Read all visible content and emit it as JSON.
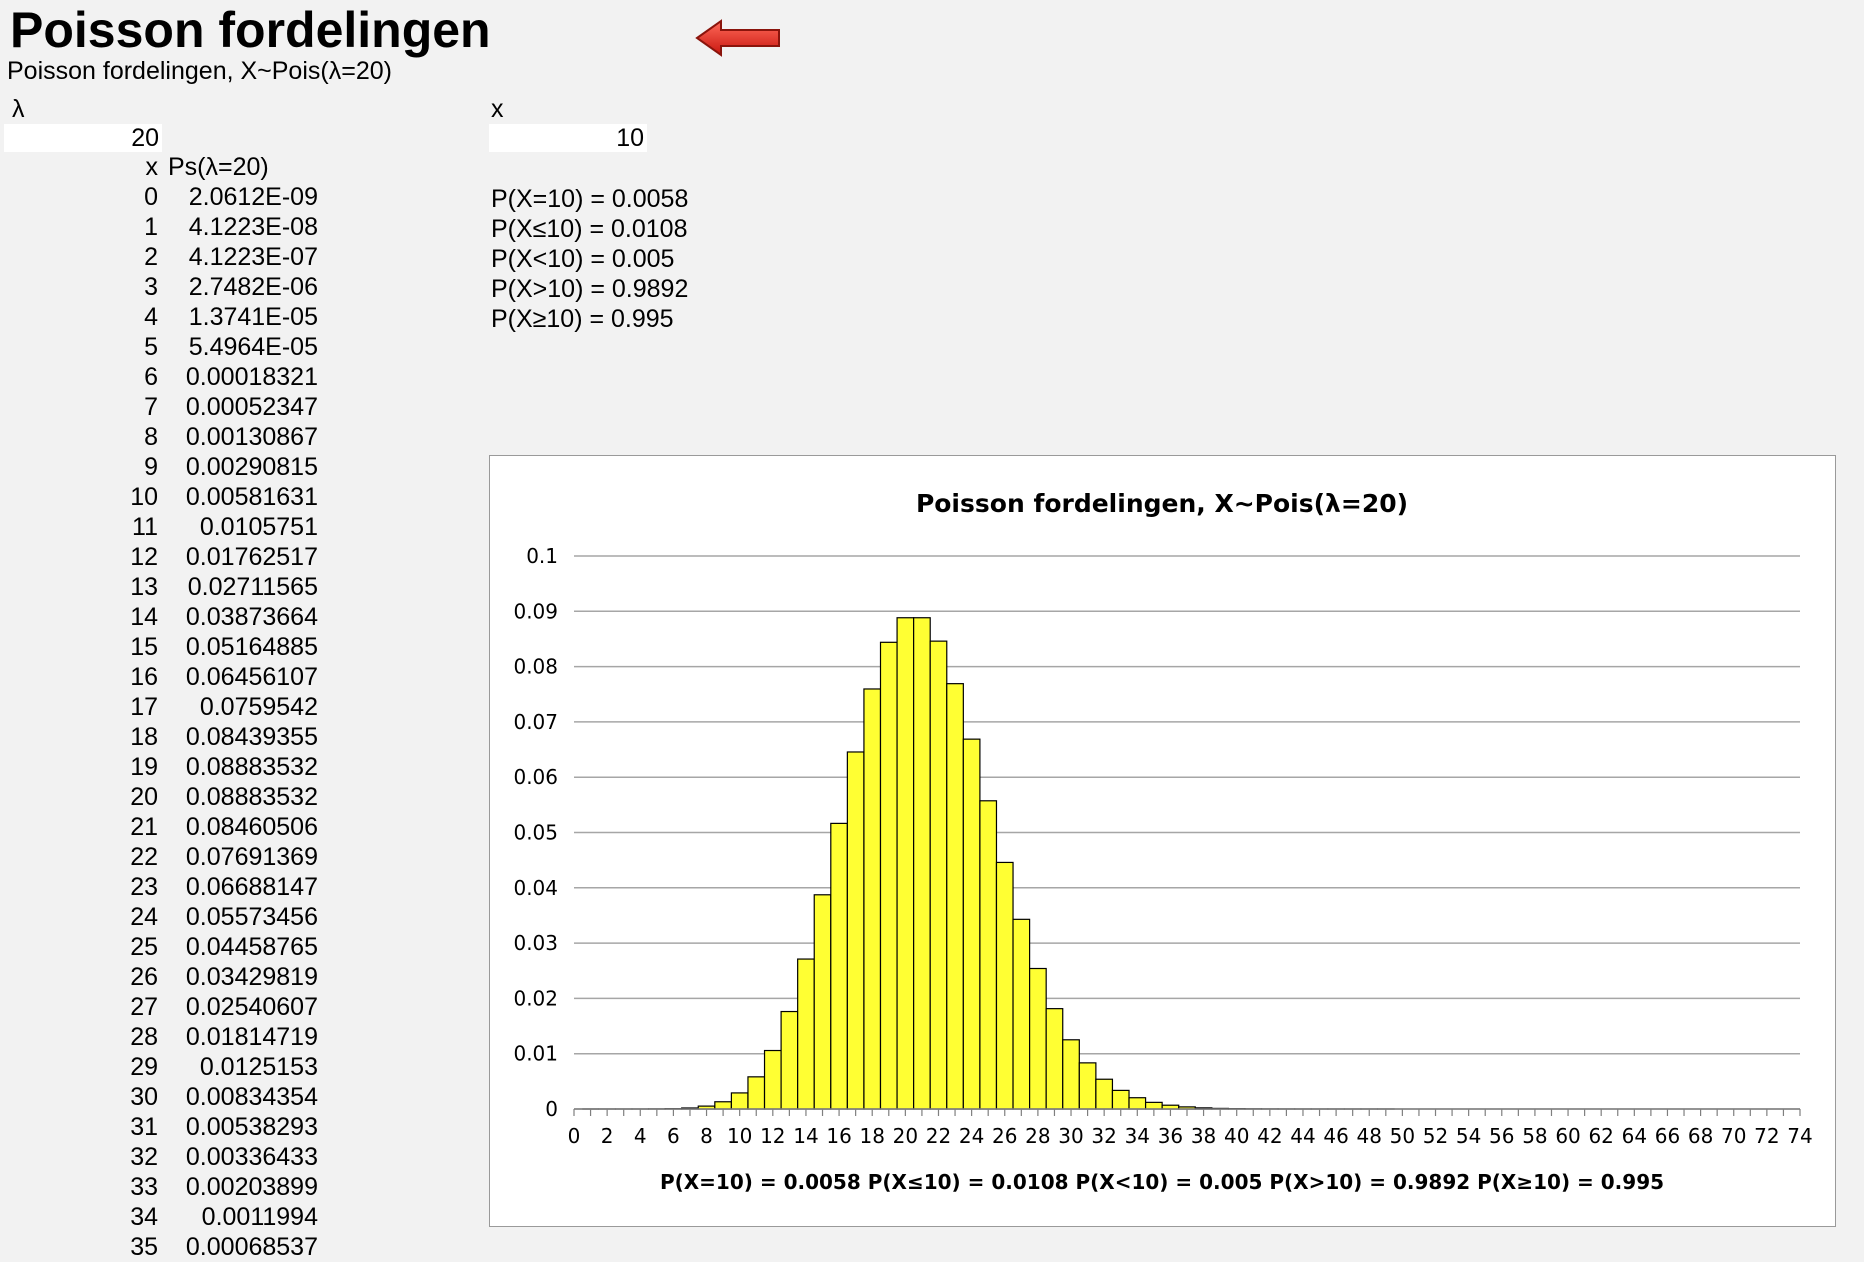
{
  "sheet": {
    "title": "Poisson fordelingen",
    "subtitle": "Poisson fordelingen, X~Pois(λ=20)",
    "arrow_color": "#e32b22"
  },
  "inputs": {
    "lambda_label": "λ",
    "lambda_value": "20",
    "x_label": "x",
    "x_value": "10"
  },
  "table": {
    "header_x": "x",
    "header_p": "Ps(λ=20)",
    "rows": [
      {
        "x": "0",
        "p": "2.0612E-09"
      },
      {
        "x": "1",
        "p": "4.1223E-08"
      },
      {
        "x": "2",
        "p": "4.1223E-07"
      },
      {
        "x": "3",
        "p": "2.7482E-06"
      },
      {
        "x": "4",
        "p": "1.3741E-05"
      },
      {
        "x": "5",
        "p": "5.4964E-05"
      },
      {
        "x": "6",
        "p": "0.00018321"
      },
      {
        "x": "7",
        "p": "0.00052347"
      },
      {
        "x": "8",
        "p": "0.00130867"
      },
      {
        "x": "9",
        "p": "0.00290815"
      },
      {
        "x": "10",
        "p": "0.00581631"
      },
      {
        "x": "11",
        "p": "0.0105751"
      },
      {
        "x": "12",
        "p": "0.01762517"
      },
      {
        "x": "13",
        "p": "0.02711565"
      },
      {
        "x": "14",
        "p": "0.03873664"
      },
      {
        "x": "15",
        "p": "0.05164885"
      },
      {
        "x": "16",
        "p": "0.06456107"
      },
      {
        "x": "17",
        "p": "0.0759542"
      },
      {
        "x": "18",
        "p": "0.08439355"
      },
      {
        "x": "19",
        "p": "0.08883532"
      },
      {
        "x": "20",
        "p": "0.08883532"
      },
      {
        "x": "21",
        "p": "0.08460506"
      },
      {
        "x": "22",
        "p": "0.07691369"
      },
      {
        "x": "23",
        "p": "0.06688147"
      },
      {
        "x": "24",
        "p": "0.05573456"
      },
      {
        "x": "25",
        "p": "0.04458765"
      },
      {
        "x": "26",
        "p": "0.03429819"
      },
      {
        "x": "27",
        "p": "0.02540607"
      },
      {
        "x": "28",
        "p": "0.01814719"
      },
      {
        "x": "29",
        "p": "0.0125153"
      },
      {
        "x": "30",
        "p": "0.00834354"
      },
      {
        "x": "31",
        "p": "0.00538293"
      },
      {
        "x": "32",
        "p": "0.00336433"
      },
      {
        "x": "33",
        "p": "0.00203899"
      },
      {
        "x": "34",
        "p": "0.0011994"
      },
      {
        "x": "35",
        "p": "0.00068537"
      }
    ]
  },
  "probabilities": {
    "eq": "P(X=10) = 0.0058",
    "le": "P(X≤10) = 0.0108",
    "lt": "P(X<10) = 0.005",
    "gt": "P(X>10) = 0.9892",
    "ge": "P(X≥10) = 0.995"
  },
  "chart_data": {
    "type": "bar",
    "title": "Poisson fordelingen, X~Pois(λ=20)",
    "xlabel": "P(X=10) = 0.0058  P(X≤10) = 0.0108  P(X<10) = 0.005  P(X>10) = 0.9892  P(X≥10) = 0.995",
    "ylabel": "",
    "ylim": [
      0,
      0.1
    ],
    "xlim": [
      0,
      74
    ],
    "y_ticks": [
      "0",
      "0.01",
      "0.02",
      "0.03",
      "0.04",
      "0.05",
      "0.06",
      "0.07",
      "0.08",
      "0.09",
      "0.1"
    ],
    "x_ticks": [
      "0",
      "2",
      "4",
      "6",
      "8",
      "10",
      "12",
      "14",
      "16",
      "18",
      "20",
      "22",
      "24",
      "26",
      "28",
      "30",
      "32",
      "34",
      "36",
      "38",
      "40",
      "42",
      "44",
      "46",
      "48",
      "50",
      "52",
      "54",
      "56",
      "58",
      "60",
      "62",
      "64",
      "66",
      "68",
      "70",
      "72",
      "74"
    ],
    "grid": true,
    "legend": "none",
    "bar_color": "#ffff33",
    "x": [
      0,
      1,
      2,
      3,
      4,
      5,
      6,
      7,
      8,
      9,
      10,
      11,
      12,
      13,
      14,
      15,
      16,
      17,
      18,
      19,
      20,
      21,
      22,
      23,
      24,
      25,
      26,
      27,
      28,
      29,
      30,
      31,
      32,
      33,
      34,
      35,
      36,
      37,
      38,
      39,
      40,
      41,
      42,
      43,
      44,
      45,
      46,
      47,
      48,
      49
    ],
    "values": [
      2.0612e-09,
      4.1223e-08,
      4.1223e-07,
      2.7482e-06,
      1.3741e-05,
      5.4964e-05,
      0.00018321,
      0.00052347,
      0.00130867,
      0.00290815,
      0.00581631,
      0.0105751,
      0.01762517,
      0.02711565,
      0.03873664,
      0.05164885,
      0.06456107,
      0.0759542,
      0.08439355,
      0.08883532,
      0.08883532,
      0.08460506,
      0.07691369,
      0.06688147,
      0.05573456,
      0.04458765,
      0.03429819,
      0.02540607,
      0.01814719,
      0.0125153,
      0.00834354,
      0.00538293,
      0.00336433,
      0.00203899,
      0.0011994,
      0.00068537,
      0.0003808,
      0.0002058,
      0.0001083,
      5.55e-05,
      2.78e-05,
      1.35e-05,
      6.4e-06,
      3e-06,
      1.4e-06,
      6e-07,
      3e-07,
      1e-07,
      1e-07,
      0.0
    ]
  }
}
